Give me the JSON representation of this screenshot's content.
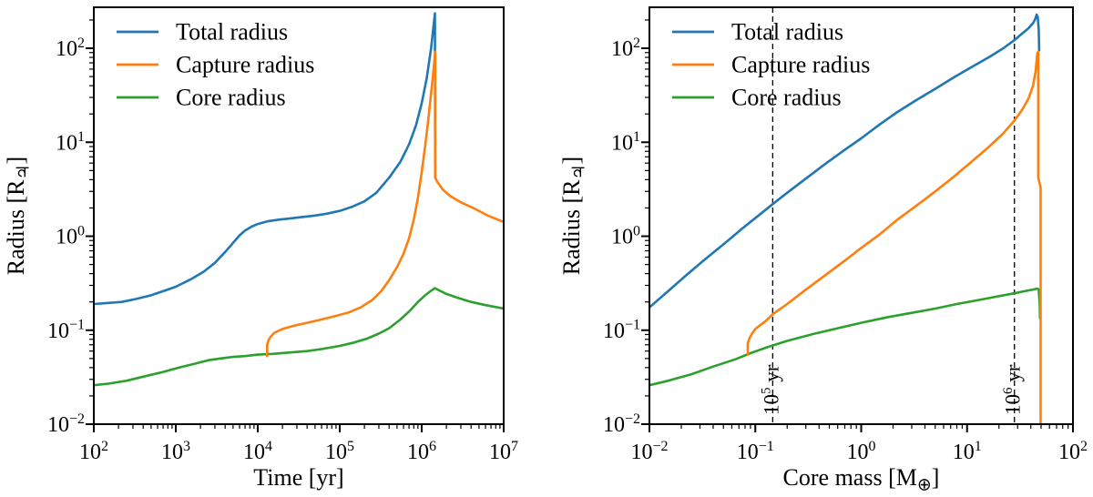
{
  "figure": {
    "background": "#ffffff",
    "frame_color": "#000000",
    "text_color": "#000000"
  },
  "chart_data": [
    {
      "type": "line",
      "panel": "radius-vs-time",
      "title": "",
      "xlabel": "Time [yr]",
      "ylabel": "Radius [R♃]",
      "xscale": "log",
      "yscale": "log",
      "xlim": [
        100,
        10000000
      ],
      "ylim": [
        0.01,
        273
      ],
      "grid": false,
      "legend": {
        "position": "upper left",
        "entries": [
          "Total radius",
          "Capture radius",
          "Core radius"
        ]
      },
      "vlines": [],
      "series": [
        {
          "name": "Total radius",
          "color": "#1f77b4",
          "z": 1,
          "x": [
            100,
            150,
            220,
            330,
            500,
            700,
            1000,
            1500,
            2200,
            3000,
            4000,
            5000,
            6000,
            7000,
            8500,
            10000,
            13000,
            18000,
            25000,
            35000,
            50000,
            70000,
            100000,
            140000,
            200000,
            280000,
            400000,
            550000,
            700000,
            850000,
            1000000,
            1150000,
            1300000,
            1400000,
            1450000,
            1460000
          ],
          "y": [
            0.19,
            0.195,
            0.2,
            0.215,
            0.235,
            0.26,
            0.29,
            0.345,
            0.42,
            0.52,
            0.68,
            0.85,
            1.02,
            1.15,
            1.27,
            1.35,
            1.44,
            1.5,
            1.55,
            1.6,
            1.66,
            1.74,
            1.86,
            2.05,
            2.35,
            2.9,
            4.2,
            6.2,
            9.5,
            15,
            26,
            48,
            100,
            180,
            235,
            4.2
          ]
        },
        {
          "name": "Capture radius",
          "color": "#ff7f0e",
          "z": 3,
          "x": [
            13000,
            13000,
            13500,
            14500,
            16000,
            20000,
            28000,
            40000,
            60000,
            90000,
            130000,
            180000,
            250000,
            320000,
            400000,
            500000,
            600000,
            700000,
            800000,
            900000,
            1000000,
            1100000,
            1200000,
            1300000,
            1400000,
            1450000,
            1460000,
            1460000,
            1550000,
            1800000,
            2200000,
            3000000,
            4500000,
            6500000,
            8500000,
            10000000
          ],
          "y": [
            0.053,
            0.07,
            0.078,
            0.086,
            0.094,
            0.103,
            0.112,
            0.12,
            0.13,
            0.142,
            0.155,
            0.175,
            0.21,
            0.26,
            0.34,
            0.47,
            0.65,
            0.95,
            1.5,
            2.6,
            4.8,
            9,
            17,
            33,
            62,
            85,
            92,
            4.2,
            3.8,
            3.15,
            2.7,
            2.3,
            1.95,
            1.65,
            1.5,
            1.42
          ]
        },
        {
          "name": "Core radius",
          "color": "#2ca02c",
          "z": 2,
          "x": [
            100,
            150,
            250,
            400,
            700,
            1100,
            1700,
            2500,
            3500,
            5000,
            7000,
            10000,
            15000,
            25000,
            40000,
            60000,
            100000,
            150000,
            220000,
            300000,
            400000,
            550000,
            700000,
            900000,
            1100000,
            1300000,
            1450000,
            1600000,
            2000000,
            2800000,
            4000000,
            6000000,
            10000000
          ],
          "y": [
            0.026,
            0.027,
            0.029,
            0.032,
            0.036,
            0.04,
            0.044,
            0.048,
            0.05,
            0.052,
            0.053,
            0.055,
            0.056,
            0.058,
            0.06,
            0.063,
            0.068,
            0.074,
            0.082,
            0.092,
            0.105,
            0.13,
            0.158,
            0.2,
            0.235,
            0.263,
            0.28,
            0.268,
            0.243,
            0.22,
            0.2,
            0.185,
            0.17
          ]
        }
      ]
    },
    {
      "type": "line",
      "panel": "radius-vs-core-mass",
      "title": "",
      "xlabel": "Core mass [M⊕]",
      "ylabel": "Radius [R♃]",
      "xscale": "log",
      "yscale": "log",
      "xlim": [
        0.01,
        100
      ],
      "ylim": [
        0.01,
        273
      ],
      "grid": false,
      "legend": {
        "position": "upper left",
        "entries": [
          "Total radius",
          "Capture radius",
          "Core radius"
        ]
      },
      "vlines": [
        {
          "x": 0.146,
          "label": "10^5 yr"
        },
        {
          "x": 28,
          "label": "10^6 yr"
        }
      ],
      "series": [
        {
          "name": "Total radius",
          "color": "#1f77b4",
          "z": 1,
          "x": [
            0.01,
            0.015,
            0.022,
            0.033,
            0.05,
            0.075,
            0.11,
            0.146,
            0.2,
            0.3,
            0.45,
            0.7,
            1.0,
            1.5,
            2.2,
            3.3,
            5,
            7.5,
            11,
            16,
            22,
            28,
            33,
            38,
            42,
            44,
            45.5,
            46.5,
            47.5,
            48
          ],
          "y": [
            0.175,
            0.26,
            0.38,
            0.56,
            0.82,
            1.2,
            1.7,
            2.2,
            2.9,
            4.1,
            5.8,
            8.3,
            11,
            15.5,
            21,
            28,
            37,
            49,
            63,
            80,
            100,
            122,
            143,
            163,
            185,
            205,
            228,
            215,
            160,
            95
          ]
        },
        {
          "name": "Capture radius",
          "color": "#ff7f0e",
          "z": 3,
          "x": [
            0.085,
            0.085,
            0.088,
            0.093,
            0.1,
            0.11,
            0.125,
            0.146,
            0.2,
            0.3,
            0.45,
            0.7,
            1.0,
            1.5,
            2.2,
            3.3,
            5,
            7.5,
            11,
            16,
            22,
            28,
            33,
            38,
            42,
            44.5,
            46,
            47,
            47,
            48.5,
            49.5,
            49.5
          ],
          "y": [
            0.055,
            0.073,
            0.082,
            0.092,
            0.103,
            0.112,
            0.125,
            0.148,
            0.19,
            0.27,
            0.38,
            0.55,
            0.75,
            1.05,
            1.5,
            2.1,
            3.0,
            4.3,
            6.2,
            8.9,
            12.5,
            17,
            22,
            29,
            40,
            58,
            88,
            92,
            4.2,
            3.6,
            3.3,
            0.0102
          ]
        },
        {
          "name": "Core radius",
          "color": "#2ca02c",
          "z": 2,
          "x": [
            0.01,
            0.015,
            0.025,
            0.04,
            0.065,
            0.09,
            0.13,
            0.2,
            0.35,
            0.6,
            1.0,
            1.8,
            3,
            5,
            8,
            13,
            20,
            28,
            35,
            42,
            46,
            47.5,
            48.5,
            48.8
          ],
          "y": [
            0.026,
            0.029,
            0.034,
            0.041,
            0.049,
            0.057,
            0.066,
            0.077,
            0.091,
            0.105,
            0.12,
            0.138,
            0.153,
            0.17,
            0.19,
            0.21,
            0.23,
            0.247,
            0.26,
            0.271,
            0.277,
            0.272,
            0.19,
            0.135
          ]
        }
      ]
    }
  ]
}
